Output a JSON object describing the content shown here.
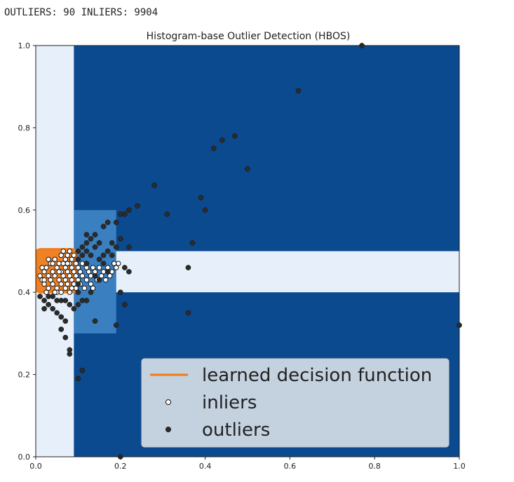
{
  "output_text": "OUTLIERS: 90 INLIERS: 9904",
  "colors": {
    "background_dark": "#0b4a8f",
    "background_light": "#e6effa",
    "background_mid": "#3a7fc0",
    "decision_function": "#f07b1a",
    "inlier_face": "#ffffff",
    "outlier_face": "#2b2b2b"
  },
  "chart_data": {
    "type": "scatter",
    "title": "Histogram-base Outlier Detection (HBOS)",
    "xlim": [
      0,
      1
    ],
    "ylim": [
      0,
      1
    ],
    "x_ticks": [
      "0.0",
      "0.2",
      "0.4",
      "0.6",
      "0.8",
      "1.0"
    ],
    "y_ticks": [
      "0.0",
      "0.2",
      "0.4",
      "0.6",
      "0.8",
      "1.0"
    ],
    "legend_position": "lower-right",
    "legend": [
      {
        "label": "learned decision function",
        "kind": "line",
        "color": "#f07b1a"
      },
      {
        "label": "inliers",
        "kind": "marker",
        "marker": "open-circle"
      },
      {
        "label": "outliers",
        "kind": "marker",
        "marker": "filled-circle"
      }
    ],
    "decision_regions": [
      {
        "level": "light",
        "x": [
          0.0,
          0.09
        ],
        "y": [
          0.0,
          1.0
        ]
      },
      {
        "level": "light",
        "x": [
          0.09,
          1.0
        ],
        "y": [
          0.4,
          0.5
        ]
      },
      {
        "level": "mid",
        "x": [
          0.09,
          0.19
        ],
        "y": [
          0.3,
          0.6
        ]
      },
      {
        "level": "decision",
        "x": [
          0.0,
          0.095
        ],
        "y": [
          0.4,
          0.505
        ]
      }
    ],
    "series": [
      {
        "name": "inliers",
        "points": [
          [
            0.01,
            0.44
          ],
          [
            0.015,
            0.43
          ],
          [
            0.02,
            0.45
          ],
          [
            0.02,
            0.42
          ],
          [
            0.025,
            0.46
          ],
          [
            0.03,
            0.44
          ],
          [
            0.03,
            0.41
          ],
          [
            0.035,
            0.47
          ],
          [
            0.035,
            0.43
          ],
          [
            0.04,
            0.45
          ],
          [
            0.04,
            0.42
          ],
          [
            0.045,
            0.48
          ],
          [
            0.045,
            0.44
          ],
          [
            0.05,
            0.46
          ],
          [
            0.05,
            0.41
          ],
          [
            0.055,
            0.47
          ],
          [
            0.055,
            0.43
          ],
          [
            0.06,
            0.49
          ],
          [
            0.06,
            0.45
          ],
          [
            0.06,
            0.42
          ],
          [
            0.065,
            0.47
          ],
          [
            0.065,
            0.44
          ],
          [
            0.07,
            0.48
          ],
          [
            0.07,
            0.46
          ],
          [
            0.07,
            0.41
          ],
          [
            0.075,
            0.49
          ],
          [
            0.075,
            0.45
          ],
          [
            0.075,
            0.42
          ],
          [
            0.08,
            0.47
          ],
          [
            0.08,
            0.44
          ],
          [
            0.08,
            0.4
          ],
          [
            0.085,
            0.48
          ],
          [
            0.085,
            0.46
          ],
          [
            0.085,
            0.43
          ],
          [
            0.09,
            0.49
          ],
          [
            0.09,
            0.45
          ],
          [
            0.09,
            0.42
          ],
          [
            0.095,
            0.47
          ],
          [
            0.095,
            0.44
          ],
          [
            0.095,
            0.41
          ],
          [
            0.1,
            0.46
          ],
          [
            0.1,
            0.43
          ],
          [
            0.105,
            0.45
          ],
          [
            0.105,
            0.42
          ],
          [
            0.11,
            0.47
          ],
          [
            0.11,
            0.44
          ],
          [
            0.115,
            0.41
          ],
          [
            0.12,
            0.46
          ],
          [
            0.12,
            0.43
          ],
          [
            0.125,
            0.45
          ],
          [
            0.13,
            0.44
          ],
          [
            0.13,
            0.42
          ],
          [
            0.135,
            0.46
          ],
          [
            0.14,
            0.45
          ],
          [
            0.145,
            0.43
          ],
          [
            0.15,
            0.46
          ],
          [
            0.155,
            0.44
          ],
          [
            0.16,
            0.45
          ],
          [
            0.165,
            0.43
          ],
          [
            0.17,
            0.46
          ],
          [
            0.175,
            0.44
          ],
          [
            0.18,
            0.45
          ],
          [
            0.185,
            0.47
          ],
          [
            0.19,
            0.46
          ],
          [
            0.195,
            0.47
          ],
          [
            0.135,
            0.41
          ],
          [
            0.025,
            0.4
          ],
          [
            0.05,
            0.4
          ],
          [
            0.015,
            0.46
          ],
          [
            0.04,
            0.47
          ],
          [
            0.06,
            0.4
          ],
          [
            0.07,
            0.43
          ],
          [
            0.08,
            0.5
          ],
          [
            0.03,
            0.48
          ],
          [
            0.02,
            0.43
          ],
          [
            0.055,
            0.45
          ],
          [
            0.045,
            0.4
          ],
          [
            0.065,
            0.5
          ],
          [
            0.075,
            0.47
          ],
          [
            0.085,
            0.41
          ]
        ]
      },
      {
        "name": "outliers",
        "points": [
          [
            0.62,
            0.89
          ],
          [
            0.77,
            1.0
          ],
          [
            0.47,
            0.78
          ],
          [
            0.44,
            0.77
          ],
          [
            0.42,
            0.75
          ],
          [
            0.5,
            0.7
          ],
          [
            0.28,
            0.66
          ],
          [
            0.39,
            0.63
          ],
          [
            0.4,
            0.6
          ],
          [
            0.24,
            0.61
          ],
          [
            0.31,
            0.59
          ],
          [
            0.22,
            0.6
          ],
          [
            0.21,
            0.59
          ],
          [
            0.2,
            0.59
          ],
          [
            0.19,
            0.57
          ],
          [
            0.17,
            0.57
          ],
          [
            0.16,
            0.56
          ],
          [
            0.14,
            0.54
          ],
          [
            0.13,
            0.53
          ],
          [
            0.12,
            0.52
          ],
          [
            0.11,
            0.51
          ],
          [
            0.1,
            0.5
          ],
          [
            0.15,
            0.52
          ],
          [
            0.18,
            0.52
          ],
          [
            0.2,
            0.53
          ],
          [
            0.22,
            0.51
          ],
          [
            0.19,
            0.51
          ],
          [
            0.37,
            0.52
          ],
          [
            0.14,
            0.51
          ],
          [
            0.12,
            0.54
          ],
          [
            0.36,
            0.46
          ],
          [
            0.21,
            0.46
          ],
          [
            0.22,
            0.45
          ],
          [
            0.36,
            0.35
          ],
          [
            0.2,
            0.4
          ],
          [
            0.21,
            0.37
          ],
          [
            0.13,
            0.4
          ],
          [
            0.11,
            0.38
          ],
          [
            0.12,
            0.38
          ],
          [
            0.14,
            0.33
          ],
          [
            0.19,
            0.32
          ],
          [
            1.0,
            0.32
          ],
          [
            0.1,
            0.19
          ],
          [
            0.11,
            0.21
          ],
          [
            0.08,
            0.26
          ],
          [
            0.08,
            0.25
          ],
          [
            0.07,
            0.29
          ],
          [
            0.06,
            0.31
          ],
          [
            0.06,
            0.34
          ],
          [
            0.07,
            0.33
          ],
          [
            0.05,
            0.35
          ],
          [
            0.04,
            0.36
          ],
          [
            0.03,
            0.37
          ],
          [
            0.02,
            0.36
          ],
          [
            0.03,
            0.39
          ],
          [
            0.02,
            0.38
          ],
          [
            0.06,
            0.38
          ],
          [
            0.08,
            0.37
          ],
          [
            0.09,
            0.36
          ],
          [
            0.1,
            0.37
          ],
          [
            0.2,
            0.0
          ],
          [
            0.1,
            0.4
          ],
          [
            0.05,
            0.38
          ],
          [
            0.07,
            0.38
          ],
          [
            0.04,
            0.39
          ],
          [
            0.01,
            0.39
          ],
          [
            0.1,
            0.42
          ],
          [
            0.1,
            0.48
          ],
          [
            0.11,
            0.49
          ],
          [
            0.12,
            0.5
          ],
          [
            0.13,
            0.49
          ],
          [
            0.15,
            0.48
          ],
          [
            0.16,
            0.49
          ],
          [
            0.17,
            0.5
          ],
          [
            0.18,
            0.49
          ],
          [
            0.16,
            0.47
          ],
          [
            0.17,
            0.45
          ],
          [
            0.12,
            0.47
          ],
          [
            0.14,
            0.44
          ],
          [
            0.15,
            0.43
          ]
        ]
      }
    ]
  }
}
